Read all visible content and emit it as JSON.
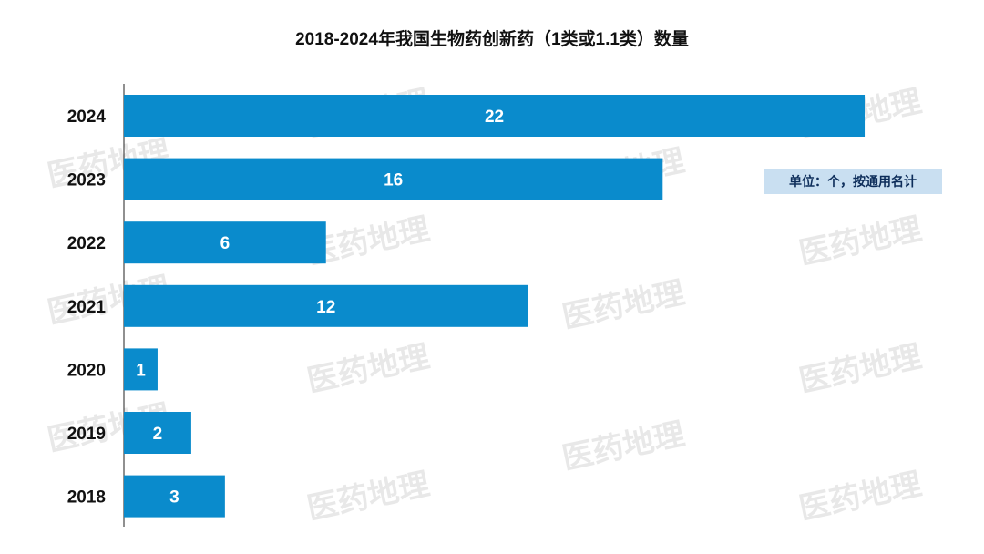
{
  "chart_data": {
    "type": "bar",
    "orientation": "horizontal",
    "title": "2018-2024年我国生物药创新药（1类或1.1类）数量",
    "categories": [
      "2024",
      "2023",
      "2022",
      "2021",
      "2020",
      "2019",
      "2018"
    ],
    "values": [
      22,
      16,
      6,
      12,
      1,
      2,
      3
    ],
    "xlim": [
      0,
      23
    ],
    "grid": false,
    "bar_color": "#0a8bcc",
    "data_label_color": "#ffffff",
    "note": "单位：个，按通用名计"
  },
  "watermark": "医药地理"
}
